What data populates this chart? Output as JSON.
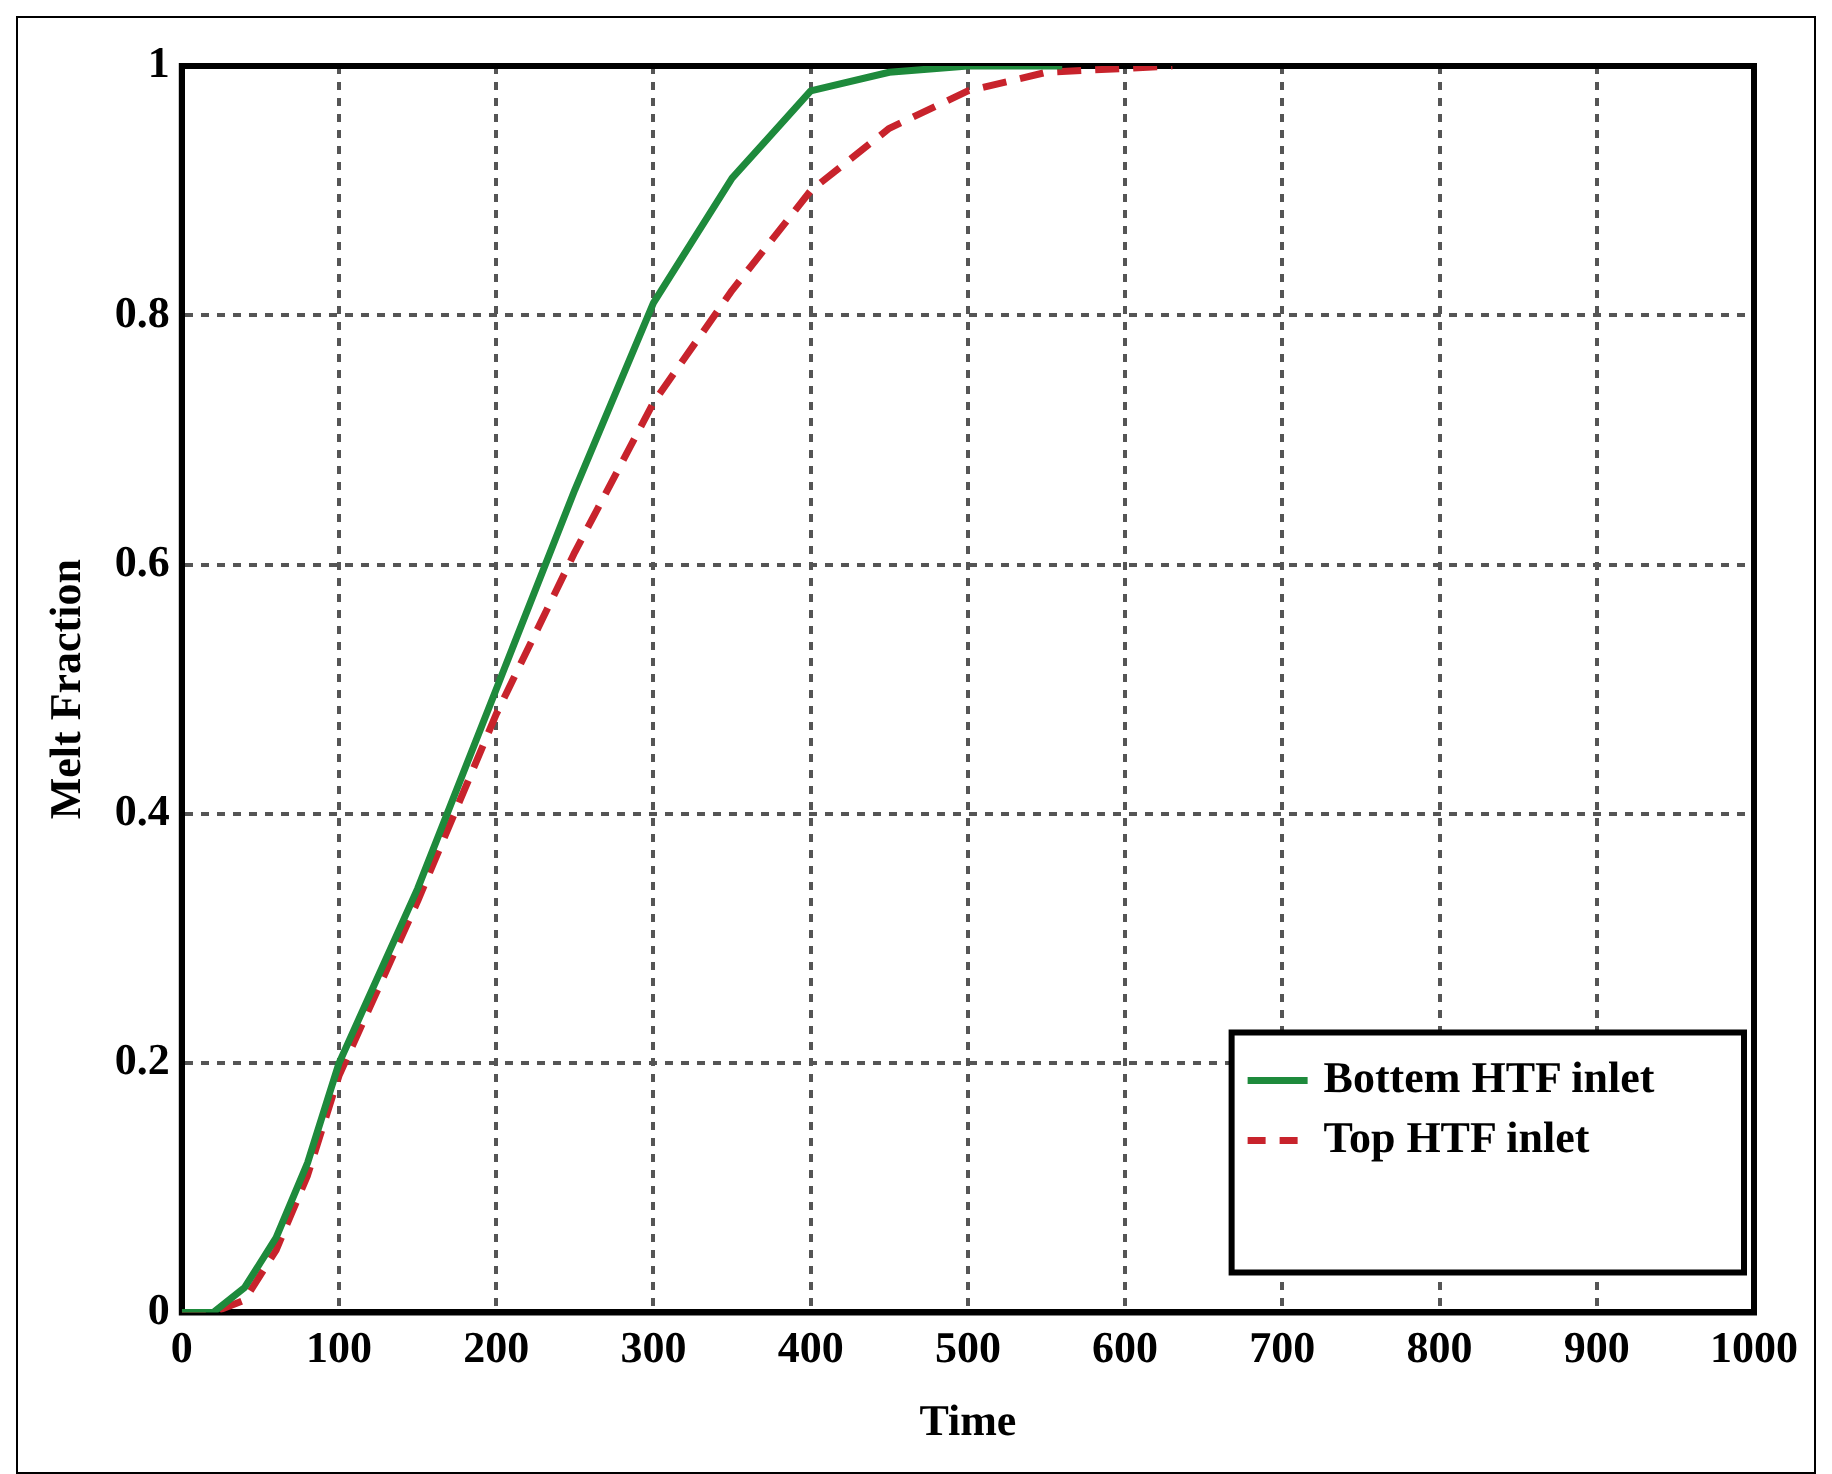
{
  "chart_data": {
    "type": "line",
    "xlabel": "Time",
    "ylabel": "Melt Fraction",
    "xlim": [
      0,
      1000
    ],
    "xticks": [
      0,
      100,
      200,
      300,
      400,
      500,
      600,
      700,
      800,
      900,
      1000
    ],
    "ylim": [
      0,
      1
    ],
    "yticks": [
      0,
      0.2,
      0.4,
      0.6,
      0.8,
      1
    ],
    "grid": true,
    "legend": "bottom right",
    "marker": "none",
    "series": [
      {
        "name": "Bottem HTF inlet",
        "color": "#1e8a3c",
        "line_style": "solid",
        "x": [
          0,
          20,
          40,
          60,
          80,
          100,
          150,
          200,
          250,
          300,
          350,
          400,
          450,
          500,
          560
        ],
        "values": [
          0,
          0,
          0.02,
          0.06,
          0.12,
          0.2,
          0.34,
          0.5,
          0.66,
          0.81,
          0.91,
          0.98,
          0.995,
          1,
          1
        ]
      },
      {
        "name": "Top HTF inlet",
        "color": "#c8232c",
        "line_style": "dashed",
        "x": [
          0,
          20,
          40,
          60,
          80,
          100,
          150,
          200,
          250,
          300,
          350,
          400,
          450,
          500,
          550,
          630
        ],
        "values": [
          0,
          0,
          0.01,
          0.05,
          0.11,
          0.19,
          0.33,
          0.48,
          0.61,
          0.73,
          0.82,
          0.9,
          0.95,
          0.98,
          0.995,
          1
        ]
      }
    ]
  }
}
